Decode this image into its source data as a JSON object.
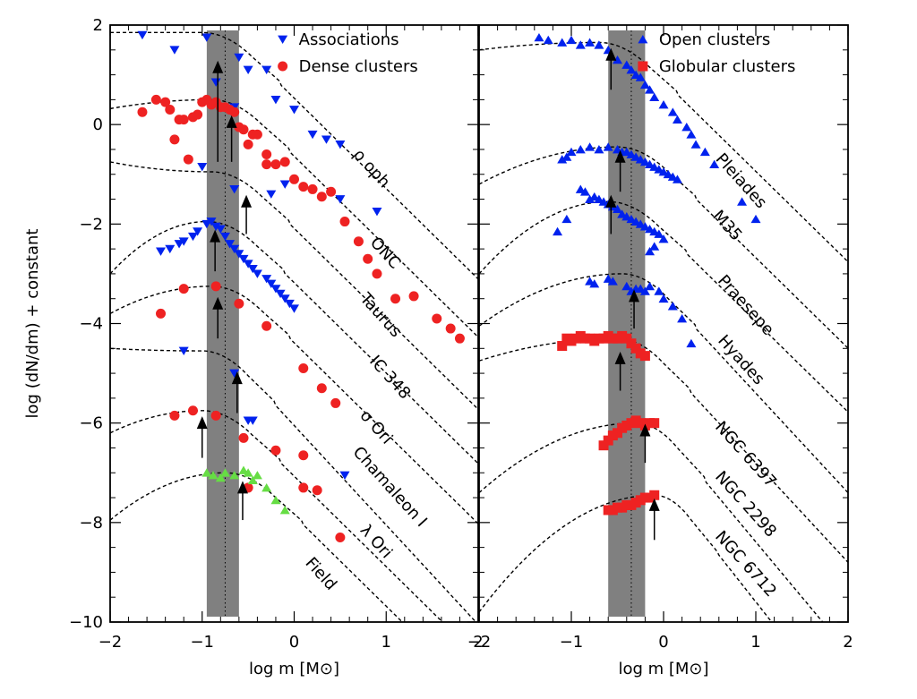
{
  "chart_data": [
    {
      "type": "scatter",
      "panel": "left",
      "xlabel": "log m [M⊙]",
      "ylabel": "log (dN/dm) + constant",
      "xlim": [
        -2,
        2
      ],
      "ylim": [
        -10,
        2
      ],
      "x_ticks": [
        "−2",
        "−1",
        "0",
        "1",
        "2"
      ],
      "y_ticks": [
        "−10",
        "−8",
        "−6",
        "−4",
        "−2",
        "0",
        "2"
      ],
      "shaded_band": {
        "x_range": [
          -0.95,
          -0.6
        ],
        "center": -0.75,
        "color": "#808080"
      },
      "legend": [
        {
          "label": "Associations",
          "marker": "triangle-down",
          "color": "#0022ee"
        },
        {
          "label": "Dense clusters",
          "marker": "circle",
          "color": "#ee2222"
        }
      ],
      "curve_labels": [
        {
          "text": "ρ oph",
          "x": 0.8,
          "y": -0.95
        },
        {
          "text": "ONC",
          "x": 0.95,
          "y": -2.65
        },
        {
          "text": "Taurus",
          "x": 0.9,
          "y": -3.9
        },
        {
          "text": "IC 348",
          "x": 1.0,
          "y": -5.15
        },
        {
          "text": "σ Ori",
          "x": 0.85,
          "y": -6.15
        },
        {
          "text": "Chamaleon I",
          "x": 1.0,
          "y": -7.35
        },
        {
          "text": "λ Ori",
          "x": 0.85,
          "y": -8.45
        },
        {
          "text": "Field",
          "x": 0.25,
          "y": -9.1
        }
      ],
      "fit_curves": [
        {
          "name": "ρ oph",
          "peak_x": -1.0,
          "peak_y": 1.85,
          "start_y": 1.85,
          "sigma": 0.55
        },
        {
          "name": "ONC",
          "peak_x": -0.9,
          "peak_y": 0.5,
          "start_y": 0.32,
          "sigma": 0.55
        },
        {
          "name": "Taurus",
          "peak_x": -0.9,
          "peak_y": -0.95,
          "start_y": -0.75,
          "sigma": 0.55
        },
        {
          "name": "IC 348",
          "peak_x": -0.95,
          "peak_y": -1.95,
          "start_y": -3.0,
          "sigma": 0.55
        },
        {
          "name": "σ Ori",
          "peak_x": -0.9,
          "peak_y": -3.25,
          "start_y": -3.8,
          "sigma": 0.55
        },
        {
          "name": "Chamaleon I",
          "peak_x": -1.0,
          "peak_y": -4.55,
          "start_y": -4.5,
          "sigma": 0.5
        },
        {
          "name": "λ Ori",
          "peak_x": -1.0,
          "peak_y": -5.75,
          "start_y": -6.2,
          "sigma": 0.55
        },
        {
          "name": "Field",
          "peak_x": -0.75,
          "peak_y": -7.0,
          "start_y": -7.95,
          "sigma": 0.55
        }
      ],
      "arrows": [
        {
          "x": -0.83,
          "y_base": -0.75,
          "y_tip": 1.25
        },
        {
          "x": -0.68,
          "y_base": -0.75,
          "y_tip": 0.15
        },
        {
          "x": -0.52,
          "y_base": -2.2,
          "y_tip": -1.45
        },
        {
          "x": -0.86,
          "y_base": -2.95,
          "y_tip": -2.15
        },
        {
          "x": -0.83,
          "y_base": -4.3,
          "y_tip": -3.5
        },
        {
          "x": -0.62,
          "y_base": -5.8,
          "y_tip": -5.0
        },
        {
          "x": -1.0,
          "y_base": -6.7,
          "y_tip": -5.9
        },
        {
          "x": -0.56,
          "y_base": -7.95,
          "y_tip": -7.2
        }
      ],
      "series": [
        {
          "name": "Associations",
          "marker": "triangle-down",
          "color": "#0022ee",
          "x": [
            -1.65,
            -0.95,
            -0.6,
            -0.3,
            -1.3,
            -0.5,
            -0.2,
            0.0,
            -0.85,
            -0.65,
            0.2,
            0.35,
            0.5,
            -1.0,
            -0.65,
            -0.25,
            -0.1,
            0.5,
            0.9,
            -1.45,
            -1.35,
            -1.25,
            -1.2,
            -1.1,
            -1.05,
            -0.95,
            -0.9,
            -0.85,
            -0.8,
            -0.75,
            -0.7,
            -0.65,
            -0.6,
            -0.55,
            -0.5,
            -0.45,
            -0.4,
            -0.3,
            -0.25,
            -0.2,
            -0.15,
            -0.1,
            -0.05,
            0.0,
            -1.2,
            -0.65,
            -0.45,
            -0.5,
            0.55
          ],
          "y": [
            1.8,
            1.75,
            1.35,
            1.1,
            1.5,
            1.1,
            0.5,
            0.3,
            0.85,
            0.35,
            -0.2,
            -0.3,
            -0.4,
            -0.85,
            -1.3,
            -1.4,
            -1.2,
            -1.5,
            -1.75,
            -2.55,
            -2.5,
            -2.4,
            -2.35,
            -2.25,
            -2.15,
            -2.0,
            -1.95,
            -2.05,
            -2.1,
            -2.25,
            -2.4,
            -2.5,
            -2.6,
            -2.7,
            -2.8,
            -2.9,
            -3.0,
            -3.1,
            -3.2,
            -3.3,
            -3.4,
            -3.5,
            -3.6,
            -3.7,
            -4.55,
            -5.0,
            -5.95,
            -5.95,
            -7.05
          ]
        },
        {
          "name": "Dense clusters",
          "marker": "circle",
          "color": "#ee2222",
          "x": [
            -1.65,
            -1.5,
            -1.4,
            -1.35,
            -1.3,
            -1.25,
            -1.2,
            -1.15,
            -1.1,
            -1.05,
            -1.0,
            -0.95,
            -0.9,
            -0.85,
            -0.8,
            -0.75,
            -0.7,
            -0.65,
            -0.6,
            -0.55,
            -0.5,
            -0.45,
            -0.4,
            -0.3,
            -0.3,
            -0.2,
            -0.1,
            0.0,
            0.1,
            0.2,
            0.3,
            0.4,
            0.55,
            0.7,
            0.8,
            0.9,
            1.1,
            1.3,
            1.55,
            1.7,
            1.8,
            -1.45,
            -1.2,
            -0.85,
            -0.6,
            -0.3,
            0.1,
            0.3,
            0.45,
            -1.3,
            -1.1,
            -0.85,
            -0.55,
            -0.2,
            0.1,
            0.25,
            -0.5,
            0.1,
            0.5
          ],
          "y": [
            0.25,
            0.5,
            0.45,
            0.3,
            -0.3,
            0.1,
            0.1,
            -0.7,
            0.15,
            0.2,
            0.45,
            0.5,
            0.4,
            0.45,
            0.35,
            0.35,
            0.3,
            0.25,
            -0.05,
            -0.1,
            -0.4,
            -0.2,
            -0.2,
            -0.6,
            -0.8,
            -0.8,
            -0.75,
            -1.1,
            -1.25,
            -1.3,
            -1.45,
            -1.35,
            -1.95,
            -2.35,
            -2.7,
            -3.0,
            -3.5,
            -3.45,
            -3.9,
            -4.1,
            -4.3,
            -3.8,
            -3.3,
            -3.25,
            -3.6,
            -4.05,
            -4.9,
            -5.3,
            -5.6,
            -5.85,
            -5.75,
            -5.85,
            -6.3,
            -6.55,
            -6.65,
            -7.35,
            -7.3,
            -7.3,
            -8.3
          ]
        },
        {
          "name": "Field",
          "marker": "triangle-up",
          "color": "#66dd44",
          "x": [
            -0.95,
            -0.88,
            -0.8,
            -0.75,
            -0.65,
            -0.55,
            -0.5,
            -0.45,
            -0.4,
            -0.3,
            -0.2,
            -0.1
          ],
          "y": [
            -7.0,
            -7.05,
            -7.1,
            -7.0,
            -7.05,
            -6.95,
            -7.0,
            -7.15,
            -7.05,
            -7.3,
            -7.55,
            -7.75
          ]
        }
      ]
    },
    {
      "type": "scatter",
      "panel": "right",
      "xlabel": "log m [M⊙]",
      "ylabel": "",
      "xlim": [
        -2,
        2
      ],
      "ylim": [
        -10,
        2
      ],
      "x_ticks": [
        "−2",
        "−1",
        "0",
        "1",
        "2"
      ],
      "y_ticks": [],
      "shaded_band": {
        "x_range": [
          -0.6,
          -0.2
        ],
        "center": -0.35,
        "color": "#808080"
      },
      "legend": [
        {
          "label": "Open clusters",
          "marker": "triangle-up",
          "color": "#0022ee"
        },
        {
          "label": "Globular clusters",
          "marker": "square",
          "color": "#ee2222"
        }
      ],
      "curve_labels": [
        {
          "text": "Pleiades",
          "x": 0.8,
          "y": -1.2
        },
        {
          "text": "M35",
          "x": 0.65,
          "y": -2.1
        },
        {
          "text": "Praesepe",
          "x": 0.85,
          "y": -3.7
        },
        {
          "text": "Hyades",
          "x": 0.8,
          "y": -4.8
        },
        {
          "text": "NGC 6397",
          "x": 0.85,
          "y": -6.7
        },
        {
          "text": "NGC 2298",
          "x": 0.85,
          "y": -7.7
        },
        {
          "text": "NGC 6712",
          "x": 0.85,
          "y": -8.9
        }
      ],
      "fit_curves": [
        {
          "name": "Pleiades",
          "peak_x": -0.7,
          "peak_y": 1.65,
          "start_y": 1.5,
          "sigma": 0.55
        },
        {
          "name": "M35",
          "peak_x": -0.5,
          "peak_y": -0.45,
          "start_y": -1.2,
          "sigma": 0.55
        },
        {
          "name": "Praesepe",
          "peak_x": -0.6,
          "peak_y": -1.55,
          "start_y": -3.0,
          "sigma": 0.55
        },
        {
          "name": "Hyades",
          "peak_x": -0.45,
          "peak_y": -3.0,
          "start_y": -4.05,
          "sigma": 0.5
        },
        {
          "name": "NGC 6397",
          "peak_x": -0.5,
          "peak_y": -4.3,
          "start_y": -4.75,
          "sigma": 0.5
        },
        {
          "name": "NGC 2298",
          "peak_x": -0.3,
          "peak_y": -6.0,
          "start_y": -7.4,
          "sigma": 0.45
        },
        {
          "name": "NGC 6712",
          "peak_x": -0.1,
          "peak_y": -7.45,
          "start_y": -9.8,
          "sigma": 0.4
        }
      ],
      "arrows": [
        {
          "x": -0.57,
          "y_base": 0.7,
          "y_tip": 1.5
        },
        {
          "x": -0.47,
          "y_base": -1.35,
          "y_tip": -0.55
        },
        {
          "x": -0.57,
          "y_base": -2.2,
          "y_tip": -1.45
        },
        {
          "x": -0.32,
          "y_base": -4.1,
          "y_tip": -3.35
        },
        {
          "x": -0.47,
          "y_base": -5.35,
          "y_tip": -4.6
        },
        {
          "x": -0.2,
          "y_base": -6.8,
          "y_tip": -6.05
        },
        {
          "x": -0.1,
          "y_base": -8.35,
          "y_tip": -7.55
        }
      ],
      "series": [
        {
          "name": "Open clusters",
          "marker": "triangle-up",
          "color": "#0022ee",
          "x": [
            -1.35,
            -1.25,
            -1.1,
            -1.0,
            -0.9,
            -0.8,
            -0.7,
            -0.6,
            -0.5,
            -0.4,
            -0.35,
            -0.3,
            -0.25,
            -0.2,
            -0.15,
            -0.1,
            0.0,
            0.1,
            0.15,
            0.25,
            0.3,
            0.35,
            0.45,
            0.55,
            0.85,
            1.0,
            -1.1,
            -1.05,
            -1.0,
            -0.9,
            -0.8,
            -0.7,
            -0.6,
            -0.5,
            -0.45,
            -0.4,
            -0.35,
            -0.3,
            -0.25,
            -0.2,
            -0.15,
            -0.1,
            -0.05,
            0.0,
            0.05,
            0.1,
            0.15,
            -1.15,
            -1.05,
            -0.9,
            -0.85,
            -0.8,
            -0.75,
            -0.7,
            -0.65,
            -0.6,
            -0.55,
            -0.5,
            -0.45,
            -0.4,
            -0.35,
            -0.3,
            -0.25,
            -0.2,
            -0.15,
            -0.1,
            -0.05,
            0.0,
            -0.1,
            -0.15,
            -0.8,
            -0.75,
            -0.6,
            -0.55,
            -0.4,
            -0.35,
            -0.3,
            -0.25,
            -0.2,
            -0.15,
            -0.05,
            0.0,
            0.1,
            0.2,
            0.3
          ],
          "y": [
            1.75,
            1.7,
            1.65,
            1.7,
            1.6,
            1.65,
            1.6,
            1.5,
            1.3,
            1.2,
            1.1,
            1.0,
            0.95,
            0.8,
            0.7,
            0.55,
            0.4,
            0.25,
            0.1,
            -0.05,
            -0.2,
            -0.4,
            -0.55,
            -0.8,
            -1.55,
            -1.9,
            -0.7,
            -0.65,
            -0.55,
            -0.5,
            -0.45,
            -0.5,
            -0.45,
            -0.5,
            -0.55,
            -0.55,
            -0.6,
            -0.65,
            -0.7,
            -0.75,
            -0.8,
            -0.85,
            -0.9,
            -0.95,
            -1.0,
            -1.05,
            -1.1,
            -2.15,
            -1.9,
            -1.3,
            -1.35,
            -1.5,
            -1.45,
            -1.5,
            -1.55,
            -1.6,
            -1.65,
            -1.7,
            -1.8,
            -1.85,
            -1.9,
            -1.95,
            -2.0,
            -2.05,
            -2.1,
            -2.15,
            -2.2,
            -2.3,
            -2.45,
            -2.55,
            -3.15,
            -3.2,
            -3.1,
            -3.15,
            -3.25,
            -3.35,
            -3.3,
            -3.3,
            -3.35,
            -3.25,
            -3.35,
            -3.5,
            -3.65,
            -3.9,
            -4.4
          ]
        },
        {
          "name": "Globular clusters",
          "marker": "square",
          "color": "#ee2222",
          "x": [
            -1.1,
            -1.05,
            -1.0,
            -0.95,
            -0.9,
            -0.85,
            -0.8,
            -0.75,
            -0.7,
            -0.65,
            -0.6,
            -0.55,
            -0.5,
            -0.45,
            -0.4,
            -0.35,
            -0.3,
            -0.25,
            -0.2,
            -0.65,
            -0.6,
            -0.55,
            -0.5,
            -0.45,
            -0.4,
            -0.35,
            -0.3,
            -0.25,
            -0.2,
            -0.15,
            -0.1,
            -0.6,
            -0.55,
            -0.5,
            -0.45,
            -0.4,
            -0.35,
            -0.3,
            -0.25,
            -0.2,
            -0.15,
            -0.1
          ],
          "y": [
            -4.45,
            -4.3,
            -4.35,
            -4.3,
            -4.25,
            -4.3,
            -4.3,
            -4.35,
            -4.3,
            -4.3,
            -4.25,
            -4.3,
            -4.3,
            -4.25,
            -4.3,
            -4.4,
            -4.5,
            -4.6,
            -4.65,
            -6.45,
            -6.35,
            -6.25,
            -6.2,
            -6.1,
            -6.05,
            -6.0,
            -5.95,
            -6.0,
            -6.05,
            -6.0,
            -6.0,
            -7.75,
            -7.75,
            -7.7,
            -7.7,
            -7.65,
            -7.65,
            -7.6,
            -7.55,
            -7.5,
            -7.5,
            -7.45
          ]
        }
      ]
    }
  ]
}
